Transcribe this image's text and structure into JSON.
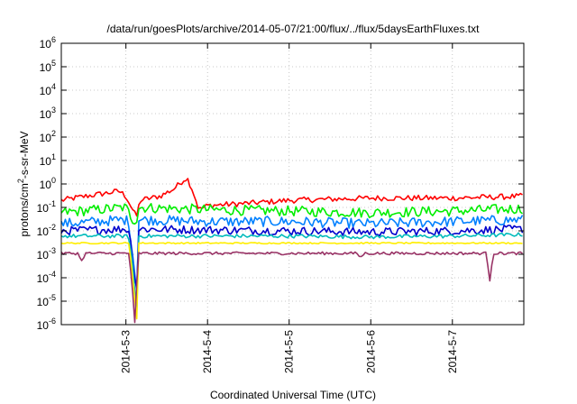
{
  "chart_data": {
    "type": "line",
    "title": "/data/run/goesPlots/archive/2014-05-07/21:00/flux/../flux/5daysEarthFluxes.txt",
    "xlabel": "Coordinated Universal Time (UTC)",
    "ylabel": {
      "prefix": "protons/cm",
      "sup": "2",
      "suffix": "-s-sr-MeV"
    },
    "y_scale": "log",
    "ylim": [
      1e-06,
      1000000.0
    ],
    "xlim": [
      "2014-05-02 05:00",
      "2014-05-07 21:00"
    ],
    "grid": true,
    "legend": "none",
    "y_ticks": [
      {
        "value": 1e-06,
        "base": "10",
        "exp": "-6"
      },
      {
        "value": 1e-05,
        "base": "10",
        "exp": "-5"
      },
      {
        "value": 0.0001,
        "base": "10",
        "exp": "-4"
      },
      {
        "value": 0.001,
        "base": "10",
        "exp": "-3"
      },
      {
        "value": 0.01,
        "base": "10",
        "exp": "-2"
      },
      {
        "value": 0.1,
        "base": "10",
        "exp": "-1"
      },
      {
        "value": 1.0,
        "base": "10",
        "exp": "0"
      },
      {
        "value": 10.0,
        "base": "10",
        "exp": "1"
      },
      {
        "value": 100.0,
        "base": "10",
        "exp": "2"
      },
      {
        "value": 1000.0,
        "base": "10",
        "exp": "3"
      },
      {
        "value": 10000.0,
        "base": "10",
        "exp": "4"
      },
      {
        "value": 100000.0,
        "base": "10",
        "exp": "5"
      },
      {
        "value": 1000000.0,
        "base": "10",
        "exp": "6"
      }
    ],
    "x_ticks": [
      {
        "t": "2014-05-03 00:00",
        "label": "2014-5-3"
      },
      {
        "t": "2014-05-04 00:00",
        "label": "2014-5-4"
      },
      {
        "t": "2014-05-05 00:00",
        "label": "2014-5-5"
      },
      {
        "t": "2014-05-06 00:00",
        "label": "2014-5-6"
      },
      {
        "t": "2014-05-07 00:00",
        "label": "2014-5-7"
      }
    ],
    "series": [
      {
        "color": "#ff0000",
        "noise": 0.12,
        "values": [
          [
            "2014-05-02 05:00",
            0.2
          ],
          [
            "2014-05-02 12:00",
            0.3
          ],
          [
            "2014-05-02 18:00",
            0.4
          ],
          [
            "2014-05-02 22:00",
            0.5
          ],
          [
            "2014-05-03 00:00",
            0.3
          ],
          [
            "2014-05-03 02:00",
            0.08
          ],
          [
            "2014-05-03 03:00",
            0.04
          ],
          [
            "2014-05-03 03:30",
            0.05
          ],
          [
            "2014-05-03 04:00",
            0.2
          ],
          [
            "2014-05-03 10:00",
            0.3
          ],
          [
            "2014-05-03 14:00",
            0.6
          ],
          [
            "2014-05-03 17:00",
            1.5
          ],
          [
            "2014-05-03 18:00",
            1.8
          ],
          [
            "2014-05-03 19:30",
            0.6
          ],
          [
            "2014-05-03 21:30",
            0.08
          ],
          [
            "2014-05-04 00:00",
            0.12
          ],
          [
            "2014-05-04 12:00",
            0.15
          ],
          [
            "2014-05-05 00:00",
            0.2
          ],
          [
            "2014-05-06 00:00",
            0.25
          ],
          [
            "2014-05-07 00:00",
            0.25
          ],
          [
            "2014-05-07 21:00",
            0.3
          ]
        ]
      },
      {
        "color": "#00ee00",
        "noise": 0.22,
        "values": [
          [
            "2014-05-02 05:00",
            0.06
          ],
          [
            "2014-05-03 00:00",
            0.1
          ],
          [
            "2014-05-03 02:00",
            0.03
          ],
          [
            "2014-05-03 03:20",
            0.03
          ],
          [
            "2014-05-03 03:40",
            0.1
          ],
          [
            "2014-05-04 00:00",
            0.08
          ],
          [
            "2014-05-05 00:00",
            0.07
          ],
          [
            "2014-05-06 00:00",
            0.06
          ],
          [
            "2014-05-07 00:00",
            0.07
          ],
          [
            "2014-05-07 21:00",
            0.09
          ]
        ]
      },
      {
        "color": "#0080ff",
        "noise": 0.22,
        "values": [
          [
            "2014-05-02 05:00",
            0.02
          ],
          [
            "2014-05-03 00:00",
            0.03
          ],
          [
            "2014-05-03 01:00",
            0.02
          ],
          [
            "2014-05-03 02:00",
            0.001
          ],
          [
            "2014-05-03 03:00",
            5e-05
          ],
          [
            "2014-05-03 03:30",
            2e-05
          ],
          [
            "2014-05-03 03:40",
            0.03
          ],
          [
            "2014-05-04 00:00",
            0.025
          ],
          [
            "2014-05-05 00:00",
            0.025
          ],
          [
            "2014-05-06 00:00",
            0.02
          ],
          [
            "2014-05-07 00:00",
            0.025
          ],
          [
            "2014-05-07 21:00",
            0.03
          ]
        ]
      },
      {
        "color": "#0000cc",
        "noise": 0.18,
        "values": [
          [
            "2014-05-02 05:00",
            0.01
          ],
          [
            "2014-05-03 00:00",
            0.012
          ],
          [
            "2014-05-03 01:00",
            0.01
          ],
          [
            "2014-05-03 02:00",
            0.0006
          ],
          [
            "2014-05-03 03:00",
            4e-05
          ],
          [
            "2014-05-03 03:30",
            3e-05
          ],
          [
            "2014-05-03 03:40",
            0.012
          ],
          [
            "2014-05-04 00:00",
            0.011
          ],
          [
            "2014-05-05 00:00",
            0.01
          ],
          [
            "2014-05-06 00:00",
            0.009
          ],
          [
            "2014-05-07 00:00",
            0.01
          ],
          [
            "2014-05-07 21:00",
            0.012
          ]
        ]
      },
      {
        "color": "#00bbbb",
        "noise": 0.08,
        "values": [
          [
            "2014-05-02 05:00",
            0.006
          ],
          [
            "2014-05-03 00:00",
            0.006
          ],
          [
            "2014-05-03 01:00",
            0.005
          ],
          [
            "2014-05-03 02:00",
            0.0003
          ],
          [
            "2014-05-03 03:00",
            5e-06
          ],
          [
            "2014-05-03 03:30",
            2e-06
          ],
          [
            "2014-05-03 03:40",
            0.006
          ],
          [
            "2014-05-05 00:00",
            0.006
          ],
          [
            "2014-05-06 00:00",
            0.0055
          ],
          [
            "2014-05-07 00:00",
            0.006
          ],
          [
            "2014-05-07 21:00",
            0.007
          ]
        ]
      },
      {
        "color": "#ffee00",
        "noise": 0.03,
        "values": [
          [
            "2014-05-02 05:00",
            0.003
          ],
          [
            "2014-05-03 00:00",
            0.003
          ],
          [
            "2014-05-03 01:00",
            0.0028
          ],
          [
            "2014-05-03 02:00",
            0.0001
          ],
          [
            "2014-05-03 03:00",
            3e-06
          ],
          [
            "2014-05-03 03:30",
            8e-07
          ],
          [
            "2014-05-03 03:40",
            0.003
          ],
          [
            "2014-05-05 00:00",
            0.003
          ],
          [
            "2014-05-07 21:00",
            0.003
          ]
        ]
      },
      {
        "color": "#993366",
        "noise": 0.06,
        "values": [
          [
            "2014-05-02 05:00",
            0.0011
          ],
          [
            "2014-05-02 10:00",
            0.0011
          ],
          [
            "2014-05-02 11:00",
            0.0005
          ],
          [
            "2014-05-02 12:00",
            0.0011
          ],
          [
            "2014-05-03 01:00",
            0.0011
          ],
          [
            "2014-05-03 02:00",
            2e-05
          ],
          [
            "2014-05-03 02:30",
            6e-07
          ],
          [
            "2014-05-03 03:40",
            0.0011
          ],
          [
            "2014-05-05 20:00",
            0.0011
          ],
          [
            "2014-05-05 21:00",
            0.0007
          ],
          [
            "2014-05-05 22:00",
            0.0011
          ],
          [
            "2014-05-07 10:00",
            0.0011
          ],
          [
            "2014-05-07 11:00",
            8e-05
          ],
          [
            "2014-05-07 12:00",
            0.0011
          ],
          [
            "2014-05-07 21:00",
            0.0011
          ]
        ]
      }
    ]
  }
}
